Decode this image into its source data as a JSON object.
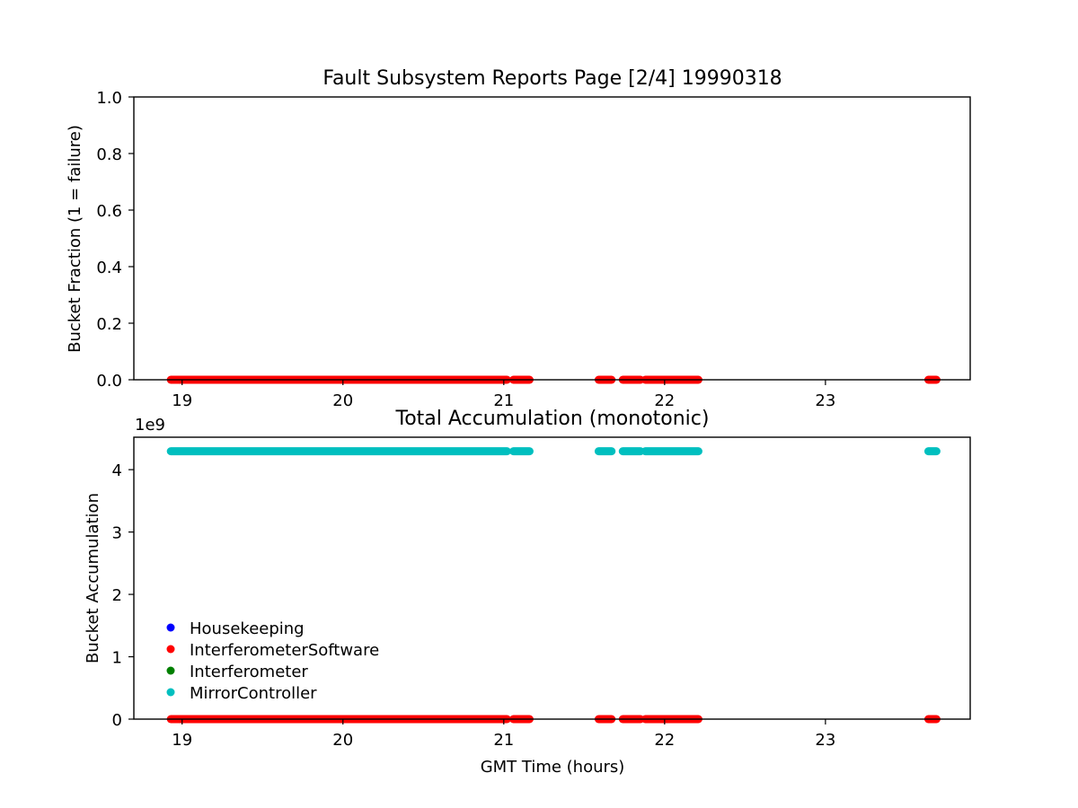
{
  "page_title": "Fault Subsystem Reports Page [2/4] 19990318",
  "chart_data": [
    {
      "type": "scatter",
      "title": "Fault Subsystem Reports Page [2/4] 19990318",
      "xlabel": "",
      "ylabel": "Bucket Fraction (1 = failure)",
      "xlim": [
        18.7,
        23.9
      ],
      "ylim": [
        0.0,
        1.0
      ],
      "x_ticks": [
        "19",
        "20",
        "21",
        "22",
        "23"
      ],
      "x_tick_values": [
        19,
        20,
        21,
        22,
        23
      ],
      "y_ticks": [
        "0.0",
        "0.2",
        "0.4",
        "0.6",
        "0.8",
        "1.0"
      ],
      "y_tick_values": [
        0.0,
        0.2,
        0.4,
        0.6,
        0.8,
        1.0
      ],
      "grid": false,
      "series": [
        {
          "color": "#ff0000",
          "value": 0.0,
          "x_segments": [
            [
              18.93,
              21.02
            ],
            [
              21.06,
              21.16
            ],
            [
              21.59,
              21.67
            ],
            [
              21.74,
              21.85
            ],
            [
              21.88,
              22.21
            ],
            [
              23.64,
              23.69
            ]
          ]
        }
      ]
    },
    {
      "type": "scatter",
      "title": "Total Accumulation (monotonic)",
      "xlabel": "GMT Time (hours)",
      "ylabel": "Bucket Accumulation",
      "y_offset_label": "1e9",
      "xlim": [
        18.7,
        23.9
      ],
      "ylim": [
        0,
        4.52
      ],
      "x_ticks": [
        "19",
        "20",
        "21",
        "22",
        "23"
      ],
      "x_tick_values": [
        19,
        20,
        21,
        22,
        23
      ],
      "y_ticks": [
        "0",
        "1",
        "2",
        "3",
        "4"
      ],
      "y_tick_values": [
        0,
        1,
        2,
        3,
        4
      ],
      "grid": false,
      "legend_position": "lower-left",
      "series": [
        {
          "name": "Housekeeping",
          "color": "#0000ff",
          "value": 0.0,
          "x_segments": []
        },
        {
          "name": "InterferometerSoftware",
          "color": "#ff0000",
          "value": 0.0,
          "x_segments": [
            [
              18.93,
              21.02
            ],
            [
              21.06,
              21.16
            ],
            [
              21.59,
              21.67
            ],
            [
              21.74,
              21.85
            ],
            [
              21.88,
              22.21
            ],
            [
              23.64,
              23.69
            ]
          ]
        },
        {
          "name": "Interferometer",
          "color": "#008000",
          "value": 0.0,
          "x_segments": []
        },
        {
          "name": "MirrorController",
          "color": "#00bfbf",
          "value": 4.295,
          "x_segments": [
            [
              18.93,
              21.02
            ],
            [
              21.06,
              21.16
            ],
            [
              21.59,
              21.67
            ],
            [
              21.74,
              21.85
            ],
            [
              21.88,
              22.21
            ],
            [
              23.64,
              23.69
            ]
          ]
        }
      ]
    }
  ]
}
